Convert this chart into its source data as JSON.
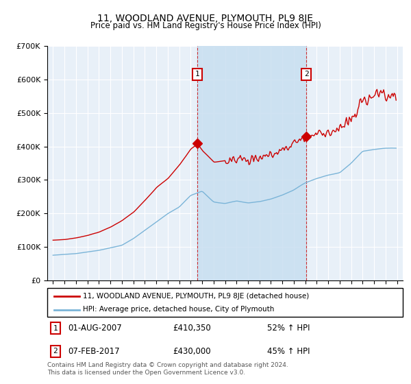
{
  "title": "11, WOODLAND AVENUE, PLYMOUTH, PL9 8JE",
  "subtitle": "Price paid vs. HM Land Registry's House Price Index (HPI)",
  "legend_line1": "11, WOODLAND AVENUE, PLYMOUTH, PL9 8JE (detached house)",
  "legend_line2": "HPI: Average price, detached house, City of Plymouth",
  "footnote": "Contains HM Land Registry data © Crown copyright and database right 2024.\nThis data is licensed under the Open Government Licence v3.0.",
  "transaction1_label": "1",
  "transaction1_date": "01-AUG-2007",
  "transaction1_price": "£410,350",
  "transaction1_hpi": "52% ↑ HPI",
  "transaction2_label": "2",
  "transaction2_date": "07-FEB-2017",
  "transaction2_price": "£430,000",
  "transaction2_hpi": "45% ↑ HPI",
  "hpi_color": "#7ab4d8",
  "price_color": "#cc0000",
  "shade_color": "#c8dff0",
  "background_color": "#ffffff",
  "plot_bg_color": "#e8f0f8",
  "marker1_x": 2007.583,
  "marker1_y": 410350,
  "marker2_x": 2017.083,
  "marker2_y": 430000,
  "ylim": [
    0,
    700000
  ],
  "xlim_start": 1994.5,
  "xlim_end": 2025.5
}
